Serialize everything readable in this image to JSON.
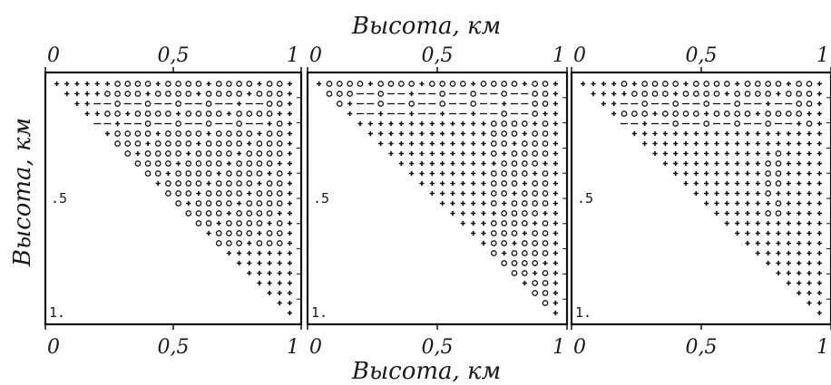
{
  "axis_title_top": "Высота, км",
  "axis_title_bottom": "Высота, км",
  "axis_title_left": "Высота, км",
  "chart_data": [
    {
      "type": "scatter",
      "panel": 1,
      "xlabel": "Высота, км",
      "ylabel": "Высота, км",
      "xlim": [
        0,
        1
      ],
      "ylim": [
        0,
        1
      ],
      "x_tick_labels": [
        "0",
        "0,5",
        "1"
      ],
      "y_tick_labels": [
        ".5",
        "1."
      ],
      "grid_size": 24,
      "layout": "upper triangle, x ≥ y",
      "markers": [
        "+",
        "o",
        "-"
      ],
      "circle_region": {
        "x": [
          0.22,
          0.97
        ],
        "y": [
          0.0,
          0.7
        ]
      },
      "dash_rows_y": [
        0.1,
        0.2
      ]
    },
    {
      "type": "scatter",
      "panel": 2,
      "xlabel": "Высота, км",
      "ylabel": "Высота, км",
      "xlim": [
        0,
        1
      ],
      "ylim": [
        0,
        1
      ],
      "x_tick_labels": [
        "0",
        "0,5",
        "1"
      ],
      "y_tick_labels": [
        ".5",
        "1."
      ],
      "grid_size": 24,
      "layout": "upper triangle, x ≥ y",
      "markers": [
        "+",
        "o",
        "-"
      ],
      "circle_region": {
        "x": [
          0.72,
          0.97
        ],
        "y": [
          0.0,
          0.95
        ]
      },
      "circle_band_top": {
        "x": [
          0.05,
          0.97
        ],
        "y": [
          0.0,
          0.12
        ]
      },
      "dash_rows_y": [
        0.08,
        0.15
      ]
    },
    {
      "type": "scatter",
      "panel": 3,
      "xlabel": "Высота, км",
      "ylabel": "Высота, км",
      "xlim": [
        0,
        1
      ],
      "ylim": [
        0,
        1
      ],
      "x_tick_labels": [
        "0",
        "0,5",
        "1"
      ],
      "y_tick_labels": [
        ".5",
        "1."
      ],
      "grid_size": 24,
      "layout": "upper triangle, x ≥ y",
      "markers": [
        "+",
        "o",
        "-"
      ],
      "circle_region": {
        "x": [
          0.15,
          0.97
        ],
        "y": [
          0.0,
          0.2
        ]
      },
      "circle_blob": {
        "x": [
          0.75,
          0.85
        ],
        "y": [
          0.3,
          0.6
        ]
      },
      "dash_rows_y": [
        0.12,
        0.2
      ]
    }
  ]
}
